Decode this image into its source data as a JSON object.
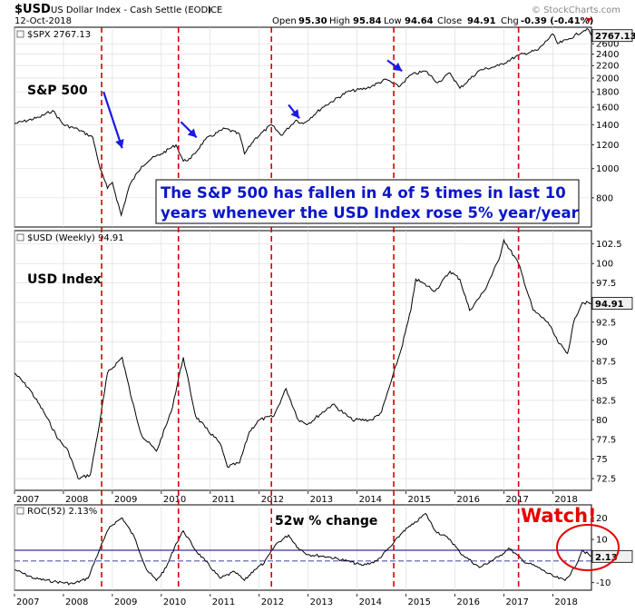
{
  "header": {
    "symbol": "$USD",
    "name": "US Dollar Index - Cash Settle (EOD)",
    "exchange": "ICE",
    "date": "12-Oct-2018",
    "watermark": "© StockCharts.com",
    "open_label": "Open",
    "open": "95.30",
    "high_label": "High",
    "high": "95.84",
    "low_label": "Low",
    "low": "94.64",
    "close_label": "Close",
    "close": "94.91",
    "chg_label": "Chg",
    "chg": "-0.39 (-0.41%)"
  },
  "annotation": {
    "line1": "The S&P 500 has fallen in 4 of 5 times in last 10",
    "line2": "years whenever the USD Index rose 5% year/year"
  },
  "watch_label": "Watch!",
  "colors": {
    "price_line": "#000000",
    "signal_line": "#d40000",
    "arrow": "#1a1ae6",
    "annotation_text": "#0a16c8",
    "watch": "#e60000",
    "zero_line": "#000080",
    "grid": "#d9d9d9",
    "price_tag_bg": "#f0f0f0"
  },
  "chart_data": [
    {
      "type": "line",
      "panel": "spx",
      "legend": "$SPX 2767.13",
      "label": "S&P 500",
      "last_value_tag": "2767.13",
      "scale": "log",
      "ylim": [
        640,
        2950
      ],
      "yticks": [
        800,
        1000,
        1200,
        1400,
        1600,
        1800,
        2000,
        2200,
        2400,
        2600
      ],
      "x": [
        2007.0,
        2007.5,
        2007.78,
        2008.0,
        2008.3,
        2008.6,
        2008.75,
        2008.9,
        2009.0,
        2009.18,
        2009.35,
        2009.6,
        2009.8,
        2010.0,
        2010.3,
        2010.45,
        2010.6,
        2010.9,
        2011.3,
        2011.6,
        2011.7,
        2011.9,
        2012.25,
        2012.45,
        2012.75,
        2012.9,
        2013.3,
        2013.8,
        2014.2,
        2014.6,
        2014.85,
        2015.1,
        2015.4,
        2015.65,
        2015.9,
        2016.1,
        2016.5,
        2016.9,
        2017.3,
        2017.7,
        2018.0,
        2018.1,
        2018.3,
        2018.7,
        2018.79
      ],
      "y": [
        1410,
        1480,
        1560,
        1400,
        1350,
        1270,
        1000,
        860,
        900,
        700,
        880,
        1020,
        1080,
        1120,
        1200,
        1060,
        1080,
        1250,
        1360,
        1300,
        1120,
        1250,
        1400,
        1290,
        1450,
        1410,
        1600,
        1800,
        1850,
        1980,
        1870,
        2050,
        2110,
        1930,
        2080,
        1850,
        2120,
        2200,
        2380,
        2480,
        2800,
        2600,
        2680,
        2920,
        2767
      ]
    },
    {
      "type": "line",
      "panel": "usd",
      "legend": "$USD (Weekly) 94.91",
      "label": "USD Index",
      "last_value_tag": "94.91",
      "scale": "linear",
      "ylim": [
        71,
        104.2
      ],
      "yticks": [
        72.5,
        75.0,
        77.5,
        80.0,
        82.5,
        85.0,
        87.5,
        90.0,
        92.5,
        95.0,
        97.5,
        100.0,
        102.5
      ],
      "x": [
        2007.0,
        2007.3,
        2007.6,
        2007.9,
        2008.1,
        2008.3,
        2008.55,
        2008.75,
        2008.9,
        2009.2,
        2009.4,
        2009.6,
        2009.9,
        2010.2,
        2010.45,
        2010.7,
        2010.9,
        2011.2,
        2011.35,
        2011.6,
        2011.8,
        2012.0,
        2012.3,
        2012.55,
        2012.8,
        2013.0,
        2013.5,
        2013.9,
        2014.3,
        2014.5,
        2014.7,
        2014.9,
        2015.1,
        2015.2,
        2015.6,
        2015.9,
        2016.1,
        2016.3,
        2016.6,
        2016.9,
        2017.0,
        2017.3,
        2017.6,
        2017.9,
        2018.1,
        2018.3,
        2018.45,
        2018.6,
        2018.79
      ],
      "y": [
        86,
        84,
        81,
        77.5,
        76,
        72.5,
        73,
        80,
        86,
        88,
        82.5,
        78,
        76,
        81,
        88,
        80.5,
        79,
        77,
        74,
        74.5,
        78.5,
        80,
        80.5,
        84,
        80,
        79.5,
        82,
        80,
        80,
        81,
        85,
        89,
        94,
        98,
        96.5,
        99,
        98,
        94,
        96.5,
        100.5,
        103,
        100,
        94,
        92.5,
        90,
        88.5,
        93,
        95,
        94.91
      ]
    },
    {
      "type": "line",
      "panel": "roc",
      "legend": "ROC(52) 2.13%",
      "label": "52w % change",
      "last_value_tag": "2.13",
      "scale": "linear",
      "ylim": [
        -13.5,
        26
      ],
      "yticks": [
        20,
        10,
        -10
      ],
      "reference_lines": [
        5,
        0
      ],
      "x": [
        2007.0,
        2007.4,
        2007.8,
        2008.2,
        2008.5,
        2008.75,
        2008.95,
        2009.2,
        2009.45,
        2009.7,
        2009.9,
        2010.1,
        2010.3,
        2010.45,
        2010.7,
        2010.9,
        2011.2,
        2011.5,
        2011.7,
        2011.9,
        2012.1,
        2012.35,
        2012.6,
        2012.8,
        2013.0,
        2013.4,
        2013.8,
        2014.1,
        2014.4,
        2014.7,
        2014.95,
        2015.15,
        2015.4,
        2015.6,
        2015.9,
        2016.1,
        2016.5,
        2016.9,
        2017.1,
        2017.4,
        2017.7,
        2018.0,
        2018.25,
        2018.45,
        2018.6,
        2018.79
      ],
      "y": [
        -4,
        -8,
        -9.5,
        -10.5,
        -8,
        6,
        16,
        20,
        11,
        -4,
        -9,
        -3,
        8,
        14,
        5,
        0,
        -8,
        -5,
        -9,
        -4,
        -1,
        8,
        12,
        6,
        3,
        2,
        0,
        -2,
        0,
        7,
        14,
        17,
        22,
        14,
        10,
        4,
        -3,
        2,
        6,
        0,
        -3,
        -7,
        -9,
        -3,
        5,
        2.13
      ]
    }
  ],
  "signals": [
    2008.78,
    2010.35,
    2012.25,
    2014.75,
    2017.3
  ],
  "arrows": [
    {
      "from": [
        2008.82,
        1800
      ],
      "to": [
        2009.2,
        1170
      ]
    },
    {
      "from": [
        2010.4,
        1430
      ],
      "to": [
        2010.72,
        1270
      ]
    },
    {
      "from": [
        2012.6,
        1630
      ],
      "to": [
        2012.82,
        1470
      ]
    },
    {
      "from": [
        2014.62,
        2290
      ],
      "to": [
        2014.92,
        2110
      ]
    }
  ],
  "x_axis": {
    "range": [
      2007.0,
      2018.79
    ],
    "ticks": [
      "2007",
      "2008",
      "2009",
      "2010",
      "2011",
      "2012",
      "2013",
      "2014",
      "2015",
      "2016",
      "2017",
      "2018"
    ],
    "tick_positions": [
      2007.0,
      2008.0,
      2009.0,
      2010.0,
      2011.0,
      2012.0,
      2013.0,
      2014.0,
      2015.0,
      2016.0,
      2017.0,
      2018.0
    ]
  }
}
